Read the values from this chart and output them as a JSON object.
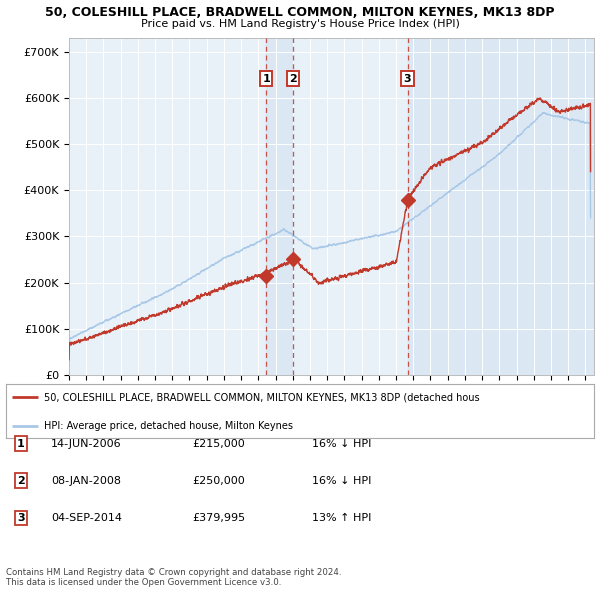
{
  "title_line1": "50, COLESHILL PLACE, BRADWELL COMMON, MILTON KEYNES, MK13 8DP",
  "title_line2": "Price paid vs. HM Land Registry's House Price Index (HPI)",
  "ylim": [
    0,
    730000
  ],
  "yticks": [
    0,
    100000,
    200000,
    300000,
    400000,
    500000,
    600000,
    700000
  ],
  "ytick_labels": [
    "£0",
    "£100K",
    "£200K",
    "£300K",
    "£400K",
    "£500K",
    "£600K",
    "£700K"
  ],
  "hpi_color": "#a8c8e8",
  "price_color": "#c0392b",
  "plot_bg_color": "#e8f0f8",
  "grid_color": "#ffffff",
  "shade_color": "#c8d8ee",
  "sale_dates": [
    2006.45,
    2008.02,
    2014.67
  ],
  "sale_prices": [
    215000,
    250000,
    379995
  ],
  "sale_labels": [
    "1",
    "2",
    "3"
  ],
  "legend_price_label": "50, COLESHILL PLACE, BRADWELL COMMON, MILTON KEYNES, MK13 8DP (detached hous",
  "legend_hpi_label": "HPI: Average price, detached house, Milton Keynes",
  "table_entries": [
    [
      "1",
      "14-JUN-2006",
      "£215,000",
      "16% ↓ HPI"
    ],
    [
      "2",
      "08-JAN-2008",
      "£250,000",
      "16% ↓ HPI"
    ],
    [
      "3",
      "04-SEP-2014",
      "£379,995",
      "13% ↑ HPI"
    ]
  ],
  "footer_text": "Contains HM Land Registry data © Crown copyright and database right 2024.\nThis data is licensed under the Open Government Licence v3.0.",
  "xstart": 1995.0,
  "xend": 2025.5
}
